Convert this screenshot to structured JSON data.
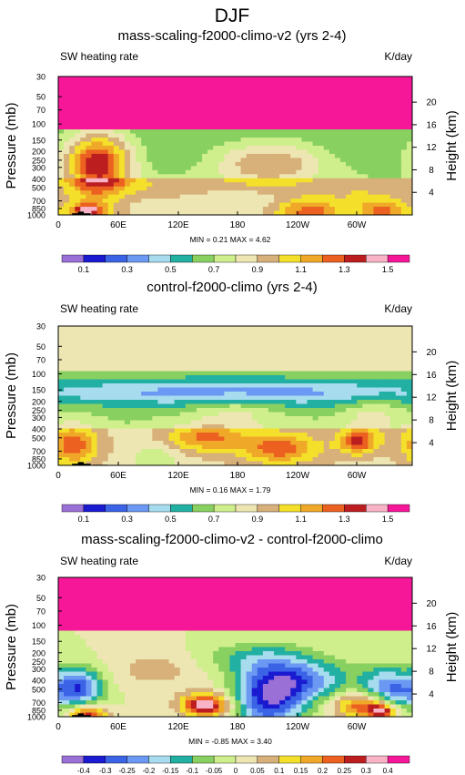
{
  "figure": {
    "title": "DJF"
  },
  "chart_data": [
    {
      "type": "heatmap",
      "title": "mass-scaling-f2000-climo-v2 (yrs 2-4)",
      "left_label": "SW heating rate",
      "units": "K/day",
      "ylabel": "Pressure (mb)",
      "ylabel_right": "Height (km)",
      "x_ticks": [
        "0",
        "60E",
        "120E",
        "180",
        "120W",
        "60W"
      ],
      "y_ticks": [
        "1000",
        "850",
        "700",
        "500",
        "400",
        "300",
        "250",
        "200",
        "150",
        "100",
        "70",
        "50",
        "30"
      ],
      "height_ticks": [
        "4",
        "8",
        "12",
        "16",
        "20"
      ],
      "stats": "MIN =  0.21  MAX =  4.62",
      "colorbar_labels": [
        "0.1",
        "0.3",
        "0.5",
        "0.7",
        "0.9",
        "1.1",
        "1.3",
        "1.5"
      ],
      "palette": [
        "#9a6fd6",
        "#1a1ad0",
        "#3b63e6",
        "#6a98f2",
        "#a6dcee",
        "#22b0a2",
        "#88d060",
        "#cfee8c",
        "#eee6b2",
        "#d8b07a",
        "#f4e02a",
        "#f0a828",
        "#ec6020",
        "#bc1e20",
        "#f8b4c6",
        "#f61698"
      ],
      "ylim_mb": [
        1000,
        30
      ],
      "lon_range": [
        0,
        360
      ],
      "pattern": "Low SW heating (blue, 0.2-0.4 K/day) dominates 150-400 mb; top layer above 100 mb exceeds 1.5 K/day (magenta); values 0.6-1.0 K/day in the lower troposphere with maxima 1.2-1.5 K/day near 850-1000 mb at about 120W and over land near 20E."
    },
    {
      "type": "heatmap",
      "title": "control-f2000-climo (yrs 2-4)",
      "left_label": "SW heating rate",
      "units": "K/day",
      "ylabel": "Pressure (mb)",
      "ylabel_right": "Height (km)",
      "x_ticks": [
        "0",
        "60E",
        "120E",
        "180",
        "120W",
        "60W"
      ],
      "y_ticks": [
        "1000",
        "850",
        "700",
        "500",
        "400",
        "300",
        "250",
        "200",
        "150",
        "100",
        "70",
        "50",
        "30"
      ],
      "height_ticks": [
        "4",
        "8",
        "12",
        "16",
        "20"
      ],
      "stats": "MIN =  0.16  MAX =  1.79",
      "colorbar_labels": [
        "0.1",
        "0.3",
        "0.5",
        "0.7",
        "0.9",
        "1.1",
        "1.3",
        "1.5"
      ],
      "palette": [
        "#9a6fd6",
        "#1a1ad0",
        "#3b63e6",
        "#6a98f2",
        "#a6dcee",
        "#22b0a2",
        "#88d060",
        "#cfee8c",
        "#eee6b2",
        "#d8b07a",
        "#f4e02a",
        "#f0a828",
        "#ec6020",
        "#bc1e20",
        "#f8b4c6",
        "#f61698"
      ],
      "ylim_mb": [
        1000,
        30
      ],
      "lon_range": [
        0,
        360
      ],
      "pattern": "Deep blue (0.1-0.3 K/day) near 100-150 mb; 0.6-0.9 K/day through the mid troposphere; maxima 1.1-1.5 K/day at 500-700 mb over about 10E, 150E, 150W and 50W."
    },
    {
      "type": "heatmap",
      "title": "mass-scaling-f2000-climo-v2 - control-f2000-climo",
      "left_label": "SW heating rate",
      "units": "K/day",
      "ylabel": "Pressure (mb)",
      "ylabel_right": "Height (km)",
      "x_ticks": [
        "0",
        "60E",
        "120E",
        "180",
        "120W",
        "60W"
      ],
      "y_ticks": [
        "1000",
        "850",
        "700",
        "500",
        "400",
        "300",
        "250",
        "200",
        "150",
        "100",
        "70",
        "50",
        "30"
      ],
      "height_ticks": [
        "4",
        "8",
        "12",
        "16",
        "20"
      ],
      "stats": "MIN = -0.85  MAX =  3.40",
      "colorbar_labels": [
        "-0.4",
        "-0.3",
        "-0.25",
        "-0.2",
        "-0.15",
        "-0.1",
        "-0.05",
        "0",
        "0.05",
        "0.1",
        "0.15",
        "0.2",
        "0.25",
        "0.3",
        "0.4"
      ],
      "palette": [
        "#9a6fd6",
        "#1a1ad0",
        "#3b63e6",
        "#6a98f2",
        "#a6dcee",
        "#22b0a2",
        "#88d060",
        "#cfee8c",
        "#eee6b2",
        "#d8b07a",
        "#f4e02a",
        "#f0a828",
        "#ec6020",
        "#bc1e20",
        "#f8b4c6",
        "#f61698"
      ],
      "ylim_mb": [
        1000,
        30
      ],
      "lon_range": [
        0,
        360
      ],
      "pattern": "Large positive difference (>0.4 K/day) above 100 mb; strong negative (< -0.4 K/day) at 400-600 mb over 0-40E and in a diagonal band 180-90W; positive 0.2-0.4 K/day near 700-850 mb around 150E and 120W-60W."
    }
  ]
}
